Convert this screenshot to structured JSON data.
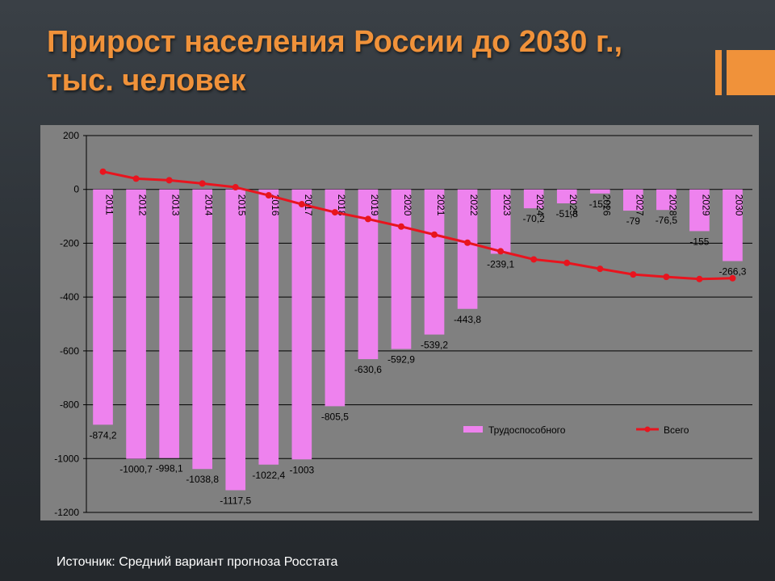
{
  "title_line1": "Прирост населения России  до 2030 г.,",
  "title_line2": "тыс. человек",
  "source": "Источник: Средний вариант прогноза Росстата",
  "colors": {
    "accent": "#f0923a",
    "plot_bg": "#808080",
    "bar": "#ee82ee",
    "line": "#e8141e"
  },
  "chart_data": {
    "type": "bar",
    "categories": [
      "2011",
      "2012",
      "2013",
      "2014",
      "2015",
      "2016",
      "2017",
      "2018",
      "2019",
      "2020",
      "2021",
      "2022",
      "2023",
      "2024",
      "2025",
      "2026",
      "2027",
      "2028",
      "2029",
      "2030"
    ],
    "series": [
      {
        "name": "Трудоспособного",
        "type": "bar",
        "values": [
          -874.2,
          -1000.7,
          -998.1,
          -1038.8,
          -1117.5,
          -1022.4,
          -1003,
          -805.5,
          -630.6,
          -592.9,
          -539.2,
          -443.8,
          -239.1,
          -70.2,
          -51.8,
          -15.2,
          -79,
          -76.5,
          -155,
          -266.3
        ],
        "labels": [
          "-874,2",
          "-1000,7",
          "-998,1",
          "-1038,8",
          "-1117,5",
          "-1022,4",
          "-1003",
          "-805,5",
          "-630,6",
          "-592,9",
          "-539,2",
          "-443,8",
          "-239,1",
          "-70,2",
          "-51,8",
          "-15,2",
          "-79",
          "-76,5",
          "-155",
          "-266,3"
        ]
      },
      {
        "name": "Всего",
        "type": "line",
        "values": [
          66,
          40,
          34,
          22,
          8,
          -22,
          -55,
          -85,
          -110,
          -138,
          -168,
          -198,
          -230,
          -260,
          -273,
          -295,
          -316,
          -325,
          -333,
          -330
        ]
      }
    ],
    "yticks": [
      200,
      0,
      -200,
      -400,
      -600,
      -800,
      -1000,
      -1200
    ],
    "ylim": [
      -1200,
      200
    ],
    "grid": true,
    "legend": "inside-bottom-right"
  }
}
